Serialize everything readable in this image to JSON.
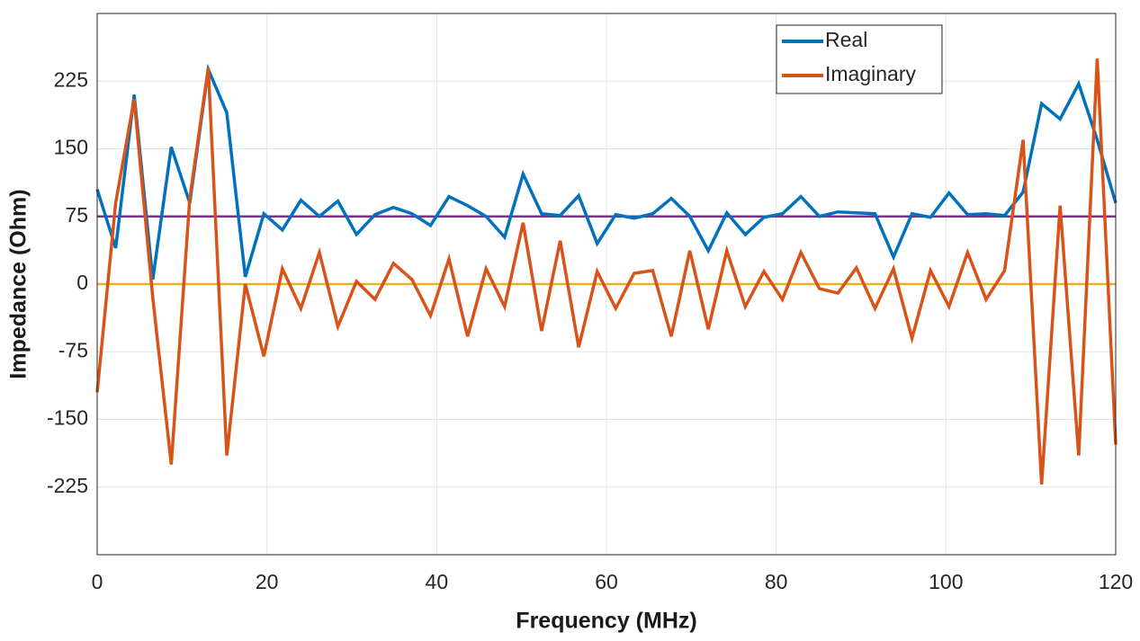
{
  "chart_data": {
    "type": "line",
    "xlabel": "Frequency (MHz)",
    "ylabel": "Impedance (Ohm)",
    "x": [
      0,
      2.18,
      4.36,
      6.55,
      8.73,
      10.91,
      13.09,
      15.27,
      17.45,
      19.64,
      21.82,
      24,
      26.18,
      28.36,
      30.55,
      32.73,
      34.91,
      37.09,
      39.27,
      41.45,
      43.64,
      45.82,
      48,
      50.18,
      52.36,
      54.55,
      56.73,
      58.91,
      61.09,
      63.27,
      65.45,
      67.64,
      69.82,
      72,
      74.18,
      76.36,
      78.55,
      80.73,
      82.91,
      85.09,
      87.27,
      89.45,
      91.64,
      93.82,
      96,
      98.18,
      100.36,
      102.55,
      104.73,
      106.91,
      109.09,
      111.27,
      113.45,
      115.64,
      117.82,
      120
    ],
    "series": [
      {
        "name": "Real",
        "color": "#0072bd",
        "values": [
          105,
          40,
          210,
          5,
          152,
          90,
          238,
          190,
          8,
          78,
          60,
          93,
          75,
          92,
          55,
          77,
          85,
          78,
          65,
          97,
          87,
          75,
          52,
          122,
          78,
          76,
          98,
          45,
          77,
          73,
          78,
          95,
          75,
          37,
          79,
          55,
          74,
          78,
          97,
          75,
          80,
          79,
          78,
          30,
          78,
          74,
          101,
          77,
          78,
          76,
          102,
          200,
          183,
          222,
          160,
          90
        ]
      },
      {
        "name": "Imaginary",
        "color": "#d95319",
        "values": [
          -120,
          90,
          205,
          -15,
          -200,
          95,
          240,
          -190,
          0,
          -80,
          17,
          -27,
          35,
          -47,
          3,
          -17,
          23,
          5,
          -35,
          28,
          -58,
          17,
          -25,
          68,
          -52,
          48,
          -70,
          14,
          -27,
          12,
          15,
          -58,
          37,
          -50,
          37,
          -25,
          14,
          -17,
          35,
          -5,
          -10,
          18,
          -27,
          17,
          -60,
          15,
          -25,
          35,
          -17,
          15,
          160,
          -222,
          87,
          -190,
          250,
          -178
        ]
      }
    ],
    "reference_lines": [
      {
        "value": 75,
        "color": "#7e2f8e"
      },
      {
        "value": 0,
        "color": "#edb120"
      }
    ],
    "xlim": [
      0,
      120
    ],
    "ylim": [
      -300,
      300
    ],
    "xticks": [
      0,
      20,
      40,
      60,
      80,
      100,
      120
    ],
    "yticks": [
      -225,
      -150,
      -75,
      0,
      75,
      150,
      225
    ],
    "grid": true,
    "legend": "upper right"
  }
}
